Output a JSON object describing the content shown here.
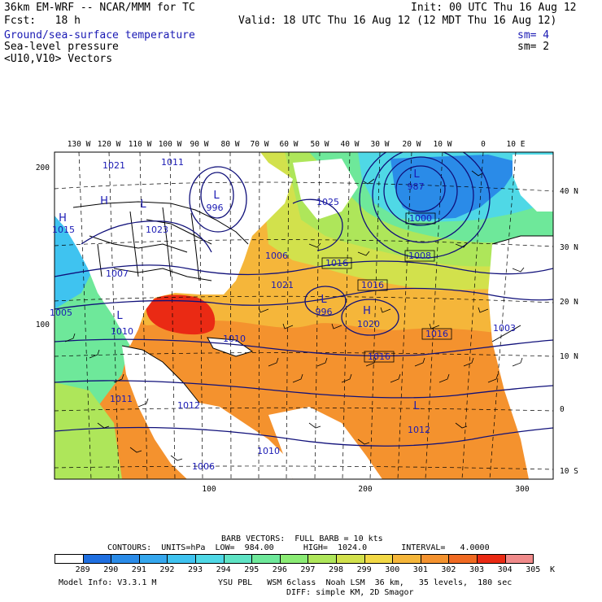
{
  "header": {
    "model_title": "36km EM-WRF -- NCAR/MMM for TC",
    "init": "Init: 00 UTC Thu 16 Aug 12",
    "forecast": "Fcst:   18 h",
    "valid": "Valid: 18 UTC Thu 16 Aug 12 (12 MDT Thu 16 Aug 12)",
    "field1": "Ground/sea-surface temperature",
    "field1_sm": "sm= 4",
    "field2": "Sea-level pressure",
    "field2_sm": "sm= 2",
    "field3": "<U10,V10> Vectors"
  },
  "axes": {
    "top_lon": [
      "130 W",
      "120 W",
      "110 W",
      "100 W",
      "90 W",
      "80 W",
      "70 W",
      "60 W",
      "50 W",
      "40 W",
      "30 W",
      "20 W",
      "10 W",
      "0",
      "10 E"
    ],
    "right_lat": [
      "40 N",
      "30 N",
      "20 N",
      "10 N",
      "0",
      "10 S"
    ],
    "left_grid": [
      "200",
      "100"
    ],
    "bottom_grid": [
      "100",
      "200",
      "300"
    ]
  },
  "pressure_labels": [
    {
      "text": "L",
      "kind": "low"
    },
    {
      "text": "996",
      "kind": "value"
    },
    {
      "text": "1011",
      "kind": "value"
    },
    {
      "text": "1021",
      "kind": "value"
    },
    {
      "text": "H",
      "kind": "high"
    },
    {
      "text": "1025",
      "kind": "value"
    },
    {
      "text": "L",
      "kind": "low"
    },
    {
      "text": "1023",
      "kind": "value"
    },
    {
      "text": "H",
      "kind": "high"
    },
    {
      "text": "1015",
      "kind": "value"
    },
    {
      "text": "1007",
      "kind": "value"
    },
    {
      "text": "1006",
      "kind": "value"
    },
    {
      "text": "L",
      "kind": "low"
    },
    {
      "text": "987",
      "kind": "value"
    },
    {
      "text": "1000",
      "kind": "boxed"
    },
    {
      "text": "1008",
      "kind": "boxed"
    },
    {
      "text": "1016",
      "kind": "boxed"
    },
    {
      "text": "1016",
      "kind": "boxed"
    },
    {
      "text": "1021",
      "kind": "value"
    },
    {
      "text": "L",
      "kind": "low"
    },
    {
      "text": "996",
      "kind": "value"
    },
    {
      "text": "H",
      "kind": "high"
    },
    {
      "text": "1020",
      "kind": "value"
    },
    {
      "text": "1016",
      "kind": "boxed"
    },
    {
      "text": "1003",
      "kind": "value"
    },
    {
      "text": "1016",
      "kind": "boxed"
    },
    {
      "text": "L",
      "kind": "low"
    },
    {
      "text": "1010",
      "kind": "value"
    },
    {
      "text": "1010",
      "kind": "value"
    },
    {
      "text": "1011",
      "kind": "value"
    },
    {
      "text": "1012",
      "kind": "value"
    },
    {
      "text": "L",
      "kind": "low"
    },
    {
      "text": "1012",
      "kind": "value"
    },
    {
      "text": "1010",
      "kind": "value"
    },
    {
      "text": "1006",
      "kind": "value"
    },
    {
      "text": "1005",
      "kind": "value"
    }
  ],
  "footer": {
    "barb_vectors": "BARB VECTORS:  FULL BARB = 10 kts",
    "contours": "CONTOURS:  UNITS=hPa  LOW=  984.00      HIGH=  1024.0       INTERVAL=   4.0000",
    "model_info": "Model Info: V3.3.1 M",
    "physics": "YSU PBL   WSM 6class  Noah LSM  36 km,   35 levels,  180 sec",
    "diffusion": "DIFF: simple KM, 2D Smagor"
  },
  "colorbar": {
    "unit": "K",
    "labels": [
      "289",
      "290",
      "291",
      "292",
      "293",
      "294",
      "295",
      "296",
      "297",
      "298",
      "299",
      "300",
      "301",
      "302",
      "303",
      "304",
      "305"
    ],
    "colors": [
      "#ffffff",
      "#1f6fe0",
      "#2a8be8",
      "#35a7ee",
      "#3fc3f0",
      "#4fd8e6",
      "#5ee3c4",
      "#6ee89a",
      "#8aeb74",
      "#aee65a",
      "#d2e14c",
      "#f2d845",
      "#f5b63a",
      "#f4922e",
      "#f06a22",
      "#ea2a14",
      "#f08a8a"
    ]
  },
  "colors": {
    "land": "#ffffff",
    "contour": "#10107a",
    "label_blue": "#1a1ab4"
  }
}
